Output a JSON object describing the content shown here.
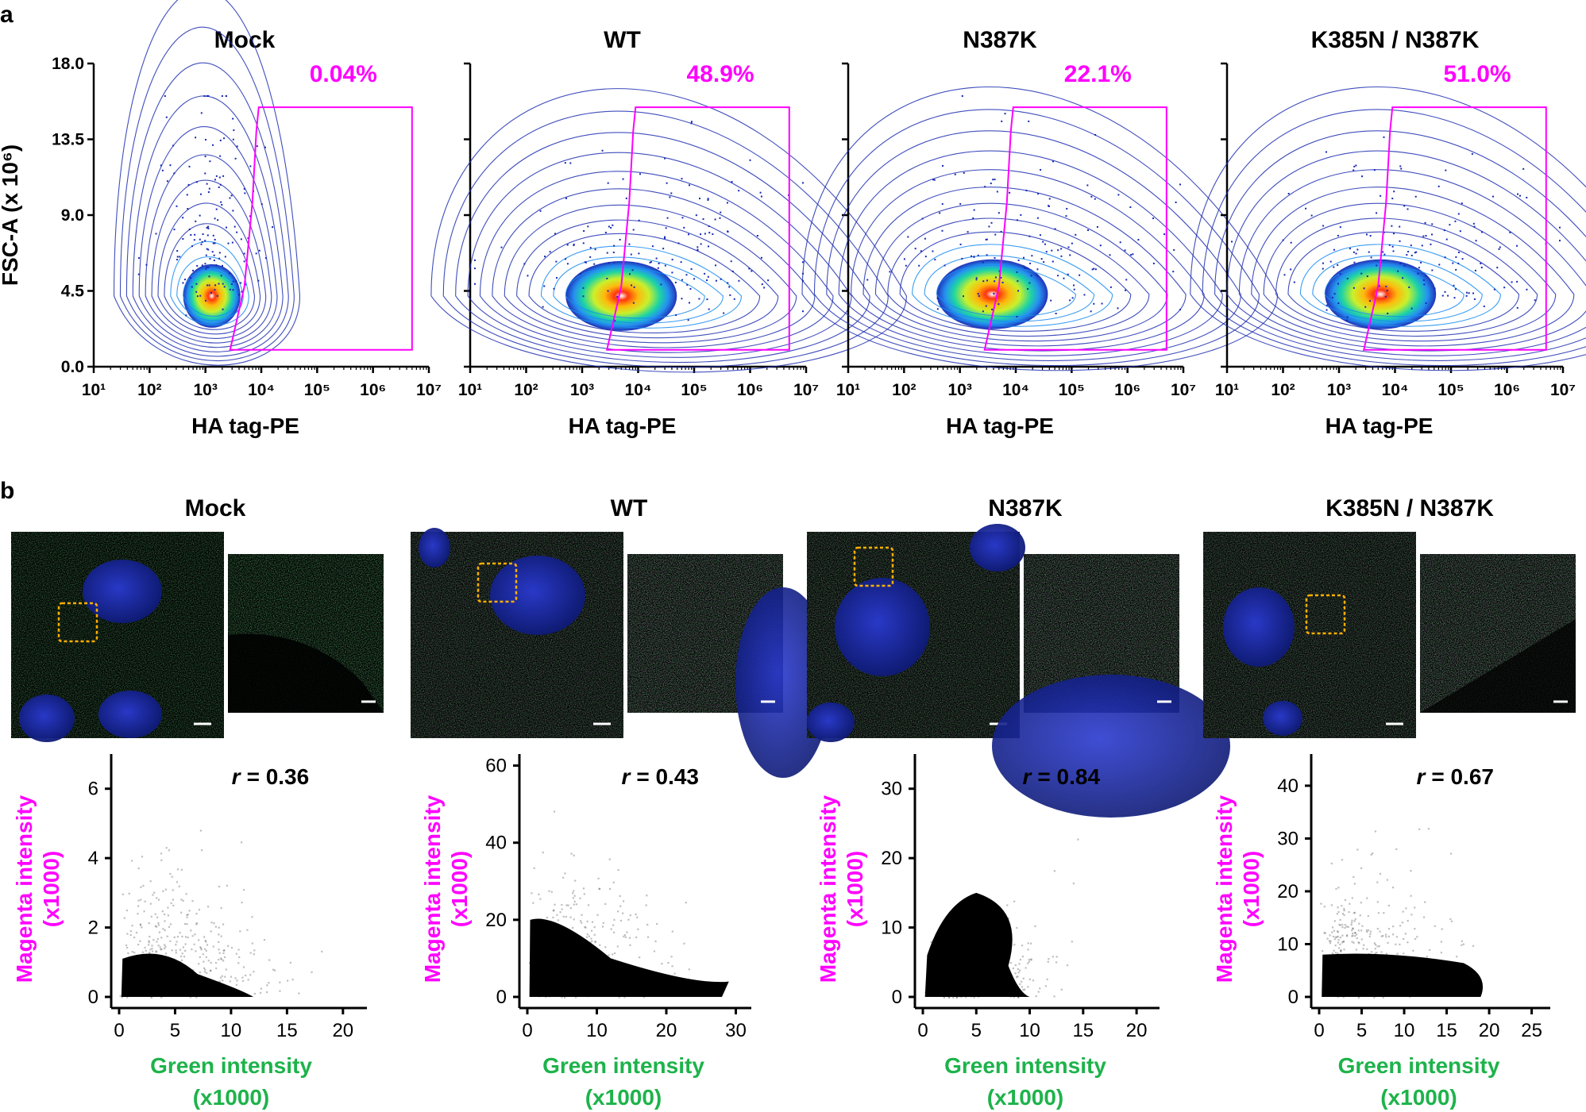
{
  "figure": {
    "panel_a_label": "a",
    "panel_b_label": "b",
    "colors": {
      "gate": "#ff00ff",
      "magenta_label": "#ff00ff",
      "green_label": "#1db34a",
      "axis": "#000000",
      "roi": "#ffb000",
      "scale_bar": "#ffffff"
    },
    "contour_icon": "density-contour-plot",
    "micrograph_icon": "fluorescence-micrograph"
  },
  "chart_data": [
    {
      "type": "contour",
      "panel": "a",
      "title": "Mock",
      "gate_percent": "0.04%",
      "xlabel": "HA tag-PE",
      "ylabel": "FSC-A (x 10⁶)",
      "xscale": "log",
      "xlim": [
        10,
        10000000
      ],
      "ylim": [
        0,
        18
      ],
      "xticks": [
        "10¹",
        "10²",
        "10³",
        "10⁴",
        "10⁵",
        "10⁶",
        "10⁷"
      ],
      "yticks": [
        "0.0",
        "4.5",
        "9.0",
        "13.5",
        "18.0"
      ],
      "peak": {
        "x": 1300,
        "y": 4.2
      },
      "gate_x_range": [
        9000,
        5000000
      ],
      "gate_y_range": [
        1.0,
        15.4
      ]
    },
    {
      "type": "contour",
      "panel": "a",
      "title": "WT",
      "gate_percent": "48.9%",
      "xlabel": "HA tag-PE",
      "xscale": "log",
      "xlim": [
        10,
        10000000
      ],
      "ylim": [
        0,
        18
      ],
      "xticks": [
        "10¹",
        "10²",
        "10³",
        "10⁴",
        "10⁵",
        "10⁶",
        "10⁷"
      ],
      "peak": {
        "x": 5000,
        "y": 4.2
      },
      "gate_x_range": [
        9000,
        5000000
      ],
      "gate_y_range": [
        1.0,
        15.4
      ]
    },
    {
      "type": "contour",
      "panel": "a",
      "title": "N387K",
      "gate_percent": "22.1%",
      "xlabel": "HA tag-PE",
      "xscale": "log",
      "xlim": [
        10,
        10000000
      ],
      "ylim": [
        0,
        18
      ],
      "xticks": [
        "10¹",
        "10²",
        "10³",
        "10⁴",
        "10⁵",
        "10⁶",
        "10⁷"
      ],
      "peak": {
        "x": 3800,
        "y": 4.3
      },
      "gate_x_range": [
        9000,
        5000000
      ],
      "gate_y_range": [
        1.0,
        15.4
      ]
    },
    {
      "type": "contour",
      "panel": "a",
      "title": "K385N / N387K",
      "gate_percent": "51.0%",
      "xlabel": "HA tag-PE",
      "xscale": "log",
      "xlim": [
        10,
        10000000
      ],
      "ylim": [
        0,
        18
      ],
      "xticks": [
        "10¹",
        "10²",
        "10³",
        "10⁴",
        "10⁵",
        "10⁶",
        "10⁷"
      ],
      "peak": {
        "x": 5500,
        "y": 4.3
      },
      "gate_x_range": [
        9000,
        5000000
      ],
      "gate_y_range": [
        1.0,
        15.4
      ]
    },
    {
      "type": "scatter",
      "panel": "b",
      "title": "Mock",
      "r_label": "r",
      "r_value": "= 0.36",
      "xlabel": "Green intensity",
      "xlabel2": "(x1000)",
      "ylabel": "Magenta intensity",
      "ylabel2": "(x1000)",
      "xlim": [
        0,
        22
      ],
      "ylim": [
        0,
        7
      ],
      "xticks": [
        0,
        5,
        10,
        15,
        20
      ],
      "yticks": [
        0,
        2,
        4,
        6
      ],
      "dense_ymax": 1.1,
      "spread_ymax": 7.0,
      "xmax": 22
    },
    {
      "type": "scatter",
      "panel": "b",
      "title": "WT",
      "r_label": "r",
      "r_value": "= 0.43",
      "xlabel": "Green intensity",
      "xlabel2": "(x1000)",
      "ylabel": "Magenta intensity",
      "ylabel2": "(x1000)",
      "xlim": [
        0,
        32
      ],
      "ylim": [
        0,
        63
      ],
      "xticks": [
        0,
        10,
        20,
        30
      ],
      "yticks": [
        0,
        20,
        40,
        60
      ],
      "dense_ymax": 20,
      "spread_ymax": 62,
      "xmax": 31
    },
    {
      "type": "scatter",
      "panel": "b",
      "title": "N387K",
      "r_label": "r",
      "r_value": "= 0.84",
      "xlabel": "Green intensity",
      "xlabel2": "(x1000)",
      "ylabel": "Magenta intensity",
      "ylabel2": "(x1000)",
      "xlim": [
        0,
        22
      ],
      "ylim": [
        0,
        35
      ],
      "xticks": [
        0,
        5,
        10,
        15,
        20
      ],
      "yticks": [
        0,
        10,
        20,
        30
      ],
      "dense_ymax": 15,
      "spread_ymax": 34,
      "xmax": 21
    },
    {
      "type": "scatter",
      "panel": "b",
      "title": "K385N / N387K",
      "r_label": "r",
      "r_value": "= 0.67",
      "xlabel": "Green intensity",
      "xlabel2": "(x1000)",
      "ylabel": "Magenta intensity",
      "ylabel2": "(x1000)",
      "xlim": [
        0,
        27
      ],
      "ylim": [
        0,
        46
      ],
      "xticks": [
        0,
        5,
        10,
        15,
        20,
        25
      ],
      "yticks": [
        0,
        10,
        20,
        30,
        40
      ],
      "dense_ymax": 8,
      "spread_ymax": 44,
      "xmax": 25
    }
  ]
}
